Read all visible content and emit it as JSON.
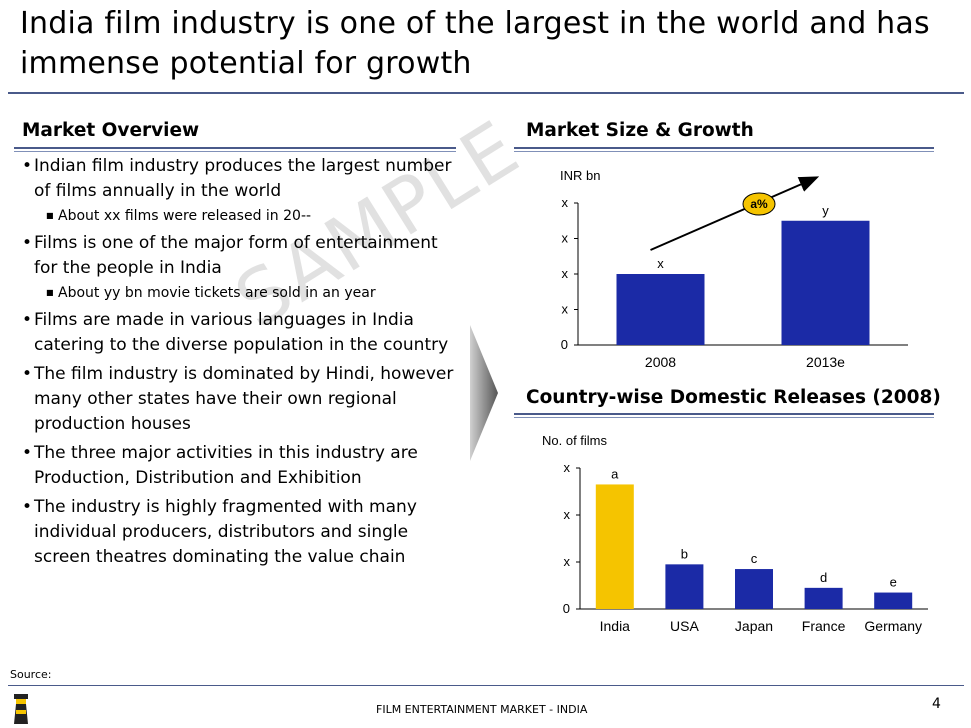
{
  "slide": {
    "title": "India film industry is one of the largest in the world and has immense potential for growth",
    "source_label": "Source:",
    "footer": "FILM ENTERTAINMENT MARKET - INDIA",
    "page_number": "4",
    "watermark": "SAMPLE"
  },
  "market_overview": {
    "heading": "Market Overview",
    "bullets": [
      {
        "text": "Indian film industry produces the largest number of films annually in the world",
        "sub": "About xx films were released in 20--"
      },
      {
        "text": "Films is one of the major form of entertainment for the people in India",
        "sub": "About yy bn movie tickets are sold in an year"
      },
      {
        "text": "Films are made in various languages in India catering to the diverse population in the country"
      },
      {
        "text": "The film industry is dominated by Hindi, however many other states have their own regional production houses"
      },
      {
        "text": "The three major activities in this industry are Production, Distribution and Exhibition"
      },
      {
        "text": "The industry is highly fragmented with many individual producers, distributors and single screen theatres dominating the value chain"
      }
    ]
  },
  "chart_data": [
    {
      "type": "bar",
      "title": "Market Size & Growth",
      "ylabel": "INR bn",
      "categories": [
        "2008",
        "2013e"
      ],
      "values": [
        2.0,
        3.5
      ],
      "data_labels": [
        "x",
        "y"
      ],
      "y_ticks": [
        "0",
        "x",
        "x",
        "x",
        "x"
      ],
      "ylim": [
        0,
        4
      ],
      "growth_label": "a%",
      "bar_color": "#1b2aa6",
      "accent_color": "#f5c400"
    },
    {
      "type": "bar",
      "title": "Country-wise Domestic Releases (2008)",
      "ylabel": "No. of films",
      "categories": [
        "India",
        "USA",
        "Japan",
        "France",
        "Germany"
      ],
      "values": [
        2.65,
        0.95,
        0.85,
        0.45,
        0.35
      ],
      "data_labels": [
        "a",
        "b",
        "c",
        "d",
        "e"
      ],
      "y_ticks": [
        "0",
        "x",
        "x",
        "x"
      ],
      "ylim": [
        0,
        3
      ],
      "bar_colors": [
        "#f5c400",
        "#1b2aa6",
        "#1b2aa6",
        "#1b2aa6",
        "#1b2aa6"
      ]
    }
  ]
}
